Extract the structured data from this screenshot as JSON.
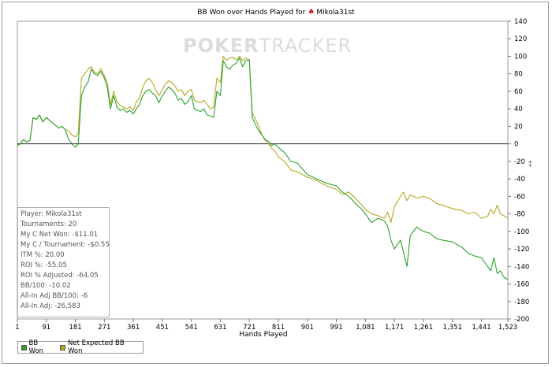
{
  "title": {
    "text": "BB Won over Hands Played for",
    "suit_icon": "spade-icon",
    "player": "Mikola31st"
  },
  "watermark": {
    "brand_bold": "POKER",
    "brand_thin": "TRACKER"
  },
  "xlabel": "Hands Played",
  "stats": [
    "Player: Mikola31st",
    "Tournaments: 20",
    "My C Net Won: -$11.01",
    "My C / Tournament: -$0.55",
    "ITM %: 20.00",
    "ROI %: -55.05",
    "ROI % Adjusted: -64.05",
    "BB/100: -10.02",
    "All-In Adj BB/100: -6",
    "All-In Adj: -26,583"
  ],
  "legend": [
    {
      "label": "BB Won",
      "color": "#2ca02c"
    },
    {
      "label": "Net Expected BB Won",
      "color": "#b5a823"
    }
  ],
  "chart_data": {
    "type": "line",
    "title": "BB Won over Hands Played for Mikola31st",
    "xlabel": "Hands Played",
    "ylabel": "",
    "xlim": [
      1,
      1523
    ],
    "ylim": [
      -200,
      140
    ],
    "x_ticks": [
      1,
      91,
      181,
      271,
      361,
      451,
      541,
      631,
      721,
      811,
      901,
      991,
      1081,
      1171,
      1261,
      1351,
      1441,
      1523
    ],
    "x_tick_labels": [
      "1",
      "91",
      "181",
      "271",
      "361",
      "451",
      "541",
      "631",
      "721",
      "811",
      "901",
      "991",
      "1,081",
      "1,171",
      "1,261",
      "1,351",
      "1,441",
      "1,523"
    ],
    "y_ticks": [
      -200,
      -180,
      -160,
      -140,
      -120,
      -100,
      -80,
      -60,
      -40,
      -20,
      0,
      20,
      40,
      60,
      80,
      100,
      120,
      140
    ],
    "zero_line": true,
    "legend_position": "bottom-left",
    "series": [
      {
        "name": "BB Won",
        "color": "#2ca02c",
        "x": [
          1,
          10,
          20,
          30,
          40,
          50,
          60,
          70,
          80,
          91,
          100,
          110,
          120,
          130,
          140,
          150,
          160,
          170,
          181,
          190,
          200,
          210,
          220,
          230,
          240,
          250,
          260,
          271,
          280,
          290,
          300,
          310,
          320,
          330,
          340,
          350,
          361,
          370,
          380,
          390,
          400,
          410,
          420,
          430,
          440,
          451,
          460,
          470,
          480,
          490,
          500,
          510,
          520,
          530,
          541,
          550,
          560,
          570,
          580,
          590,
          600,
          610,
          620,
          631,
          640,
          650,
          660,
          670,
          680,
          690,
          700,
          710,
          721,
          730,
          740,
          750,
          760,
          770,
          780,
          790,
          800,
          811,
          830,
          850,
          870,
          901,
          930,
          960,
          991,
          1010,
          1030,
          1050,
          1070,
          1081,
          1100,
          1120,
          1140,
          1150,
          1160,
          1171,
          1190,
          1200,
          1210,
          1220,
          1240,
          1261,
          1280,
          1300,
          1320,
          1351,
          1380,
          1400,
          1420,
          1441,
          1460,
          1470,
          1480,
          1490,
          1500,
          1510,
          1523
        ],
        "y": [
          -2,
          0,
          5,
          2,
          4,
          30,
          28,
          33,
          25,
          30,
          27,
          24,
          21,
          18,
          20,
          16,
          5,
          0,
          -4,
          0,
          55,
          65,
          70,
          85,
          80,
          78,
          83,
          75,
          65,
          40,
          55,
          42,
          38,
          40,
          36,
          38,
          34,
          40,
          45,
          55,
          60,
          62,
          58,
          55,
          47,
          55,
          60,
          65,
          62,
          58,
          50,
          52,
          45,
          48,
          55,
          40,
          38,
          37,
          40,
          33,
          32,
          30,
          60,
          55,
          95,
          88,
          85,
          90,
          92,
          98,
          88,
          95,
          96,
          30,
          22,
          15,
          10,
          5,
          3,
          -2,
          0,
          -4,
          -10,
          -20,
          -22,
          -35,
          -40,
          -45,
          -48,
          -55,
          -60,
          -68,
          -75,
          -80,
          -90,
          -85,
          -88,
          -94,
          -110,
          -120,
          -110,
          -125,
          -140,
          -105,
          -95,
          -100,
          -102,
          -108,
          -110,
          -112,
          -118,
          -125,
          -128,
          -130,
          -140,
          -145,
          -130,
          -148,
          -145,
          -152,
          -155
        ]
      },
      {
        "name": "Net Expected BB Won",
        "color": "#b5a823",
        "x": [
          1,
          10,
          20,
          30,
          40,
          50,
          60,
          70,
          80,
          91,
          100,
          110,
          120,
          130,
          140,
          150,
          160,
          170,
          181,
          190,
          200,
          210,
          220,
          230,
          240,
          250,
          260,
          271,
          280,
          290,
          300,
          310,
          320,
          330,
          340,
          350,
          361,
          370,
          380,
          390,
          400,
          410,
          420,
          430,
          440,
          451,
          460,
          470,
          480,
          490,
          500,
          510,
          520,
          530,
          541,
          550,
          560,
          570,
          580,
          590,
          600,
          610,
          620,
          631,
          640,
          650,
          660,
          670,
          680,
          690,
          700,
          710,
          721,
          730,
          740,
          750,
          760,
          770,
          780,
          790,
          800,
          811,
          830,
          850,
          870,
          901,
          930,
          960,
          991,
          1010,
          1030,
          1050,
          1070,
          1081,
          1100,
          1120,
          1140,
          1150,
          1160,
          1171,
          1190,
          1200,
          1210,
          1220,
          1240,
          1261,
          1280,
          1300,
          1320,
          1351,
          1380,
          1400,
          1420,
          1441,
          1460,
          1470,
          1480,
          1490,
          1500,
          1510,
          1523
        ],
        "y": [
          -2,
          0,
          5,
          2,
          4,
          30,
          28,
          33,
          25,
          30,
          27,
          24,
          21,
          18,
          20,
          16,
          15,
          10,
          8,
          12,
          75,
          80,
          85,
          88,
          82,
          80,
          86,
          78,
          70,
          45,
          60,
          48,
          44,
          42,
          40,
          42,
          38,
          48,
          52,
          65,
          72,
          75,
          70,
          62,
          55,
          62,
          68,
          72,
          70,
          66,
          60,
          62,
          55,
          60,
          62,
          50,
          48,
          47,
          50,
          45,
          40,
          42,
          75,
          70,
          100,
          95,
          98,
          99,
          96,
          100,
          95,
          98,
          96,
          35,
          28,
          20,
          10,
          4,
          0,
          -5,
          -8,
          -15,
          -20,
          -30,
          -32,
          -38,
          -42,
          -48,
          -52,
          -58,
          -55,
          -62,
          -70,
          -75,
          -80,
          -82,
          -85,
          -78,
          -90,
          -72,
          -60,
          -55,
          -65,
          -58,
          -62,
          -60,
          -62,
          -68,
          -70,
          -74,
          -76,
          -80,
          -78,
          -85,
          -83,
          -75,
          -80,
          -70,
          -80,
          -82,
          -85
        ]
      }
    ]
  }
}
